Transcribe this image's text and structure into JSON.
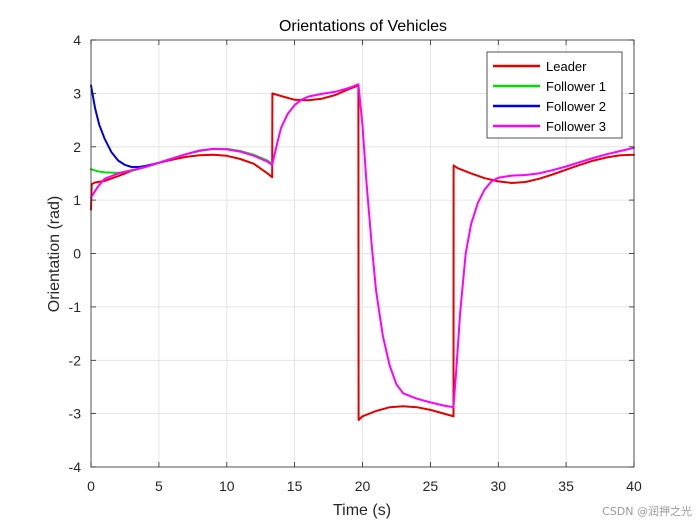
{
  "chart_data": {
    "type": "line",
    "title": "Orientations of Vehicles",
    "xlabel": "Time (s)",
    "ylabel": "Orientation (rad)",
    "xlim": [
      0,
      40
    ],
    "ylim": [
      -4,
      4
    ],
    "xticks": [
      0,
      5,
      10,
      15,
      20,
      25,
      30,
      35,
      40
    ],
    "yticks": [
      -4,
      -3,
      -2,
      -1,
      0,
      1,
      2,
      3,
      4
    ],
    "grid": true,
    "legend_position": "top-right",
    "series": [
      {
        "name": "Leader",
        "color": "#e50000",
        "x": [
          0,
          0.05,
          0.3,
          1,
          2,
          3,
          4,
          5,
          6,
          7,
          8,
          9,
          10,
          11,
          12,
          13,
          13.35,
          13.36,
          14,
          15,
          16,
          17,
          18,
          19,
          19.7,
          19.71,
          20,
          21,
          22,
          23,
          24,
          25,
          26,
          26.7,
          26.71,
          27,
          28,
          29,
          30,
          31,
          32,
          33,
          34,
          35,
          36,
          37,
          38,
          39,
          40
        ],
        "y": [
          0.82,
          1.3,
          1.33,
          1.36,
          1.45,
          1.55,
          1.62,
          1.7,
          1.76,
          1.81,
          1.84,
          1.85,
          1.83,
          1.77,
          1.68,
          1.5,
          1.43,
          3.0,
          2.95,
          2.88,
          2.87,
          2.9,
          2.97,
          3.08,
          3.15,
          -3.12,
          -3.05,
          -2.95,
          -2.88,
          -2.86,
          -2.88,
          -2.93,
          -3.0,
          -3.05,
          1.65,
          1.6,
          1.5,
          1.41,
          1.35,
          1.32,
          1.34,
          1.4,
          1.48,
          1.57,
          1.66,
          1.74,
          1.8,
          1.84,
          1.85
        ]
      },
      {
        "name": "Follower 1",
        "color": "#00e000",
        "x": [
          0,
          0.5,
          1,
          2,
          3,
          4,
          5,
          6,
          7,
          8,
          9,
          10,
          11,
          12,
          13,
          13.35
        ],
        "y": [
          1.58,
          1.54,
          1.52,
          1.51,
          1.55,
          1.62,
          1.7,
          1.78,
          1.86,
          1.92,
          1.96,
          1.96,
          1.92,
          1.85,
          1.74,
          1.68
        ]
      },
      {
        "name": "Follower 2",
        "color": "#0000e0",
        "x": [
          0,
          0.3,
          0.6,
          1,
          1.5,
          2,
          2.5,
          3,
          3.5,
          4,
          5,
          6
        ],
        "y": [
          3.15,
          2.72,
          2.42,
          2.15,
          1.9,
          1.74,
          1.66,
          1.62,
          1.62,
          1.64,
          1.7,
          1.78
        ]
      },
      {
        "name": "Follower 3",
        "color": "#ff00ff",
        "x": [
          0,
          0.5,
          1,
          2,
          3,
          4,
          5,
          6,
          7,
          8,
          9,
          10,
          11,
          12,
          13,
          13.35,
          13.7,
          14,
          14.5,
          15,
          15.5,
          16,
          17,
          18,
          19,
          19.7,
          20,
          20.3,
          20.7,
          21,
          21.5,
          22,
          22.5,
          23,
          24,
          25,
          26,
          26.7,
          26.9,
          27.2,
          27.6,
          28,
          28.5,
          29,
          29.5,
          30,
          31,
          32,
          33,
          34,
          35,
          36,
          37,
          38,
          39,
          40
        ],
        "y": [
          1.05,
          1.25,
          1.4,
          1.5,
          1.56,
          1.62,
          1.7,
          1.78,
          1.86,
          1.93,
          1.96,
          1.95,
          1.91,
          1.83,
          1.72,
          1.66,
          2.05,
          2.35,
          2.62,
          2.78,
          2.88,
          2.94,
          2.99,
          3.03,
          3.1,
          3.17,
          2.4,
          1.3,
          0.1,
          -0.7,
          -1.55,
          -2.1,
          -2.45,
          -2.62,
          -2.72,
          -2.79,
          -2.85,
          -2.88,
          -2.2,
          -1.1,
          0.0,
          0.55,
          0.95,
          1.2,
          1.35,
          1.42,
          1.46,
          1.47,
          1.5,
          1.56,
          1.63,
          1.71,
          1.79,
          1.86,
          1.92,
          1.98
        ]
      }
    ]
  },
  "watermark": "CSDN @润押之光"
}
